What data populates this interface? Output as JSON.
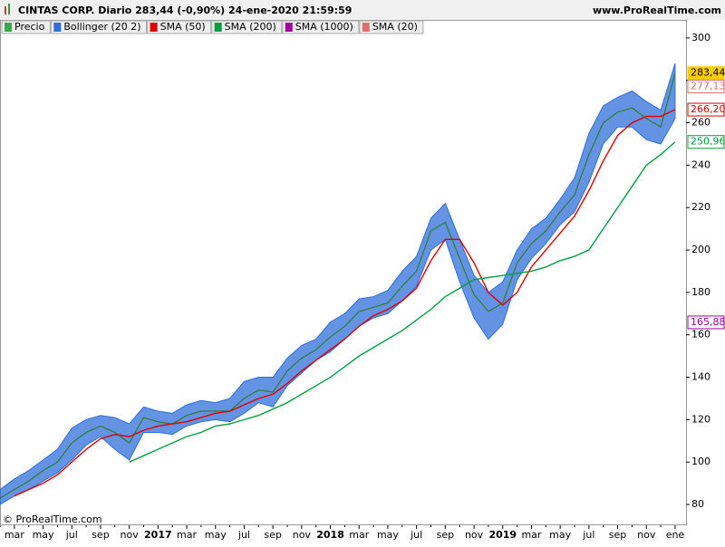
{
  "header": {
    "title": "CINTAS CORP. Diario 283,44 (-0,90%) 24-ene-2020 21:59:59",
    "site": "www.ProRealTime.com",
    "copyright": "© ProRealTime.com"
  },
  "chart_data": {
    "type": "stock",
    "categories": [
      null,
      "mar",
      null,
      "may",
      null,
      "jul",
      null,
      "sep",
      null,
      "nov",
      null,
      "2017",
      null,
      "mar",
      null,
      "may",
      null,
      "jul",
      null,
      "sep",
      null,
      "nov",
      null,
      "2018",
      null,
      "mar",
      null,
      "may",
      null,
      "jul",
      null,
      "sep",
      null,
      "nov",
      null,
      "2019",
      null,
      "mar",
      null,
      "may",
      null,
      "jul",
      null,
      "sep",
      null,
      "nov",
      null,
      "ene"
    ],
    "ylim": [
      70.2,
      308.5
    ],
    "yticks": [
      80,
      100,
      120,
      140,
      160,
      180,
      200,
      220,
      240,
      260,
      280,
      300
    ],
    "legend": [
      {
        "name": "Precio",
        "color": "#3aa84a"
      },
      {
        "name": "Bollinger (20 2)",
        "color": "#2f6fd8"
      },
      {
        "name": "SMA (50)",
        "color": "#e00000"
      },
      {
        "name": "SMA (200)",
        "color": "#00a040"
      },
      {
        "name": "SMA (1000)",
        "color": "#a000a0"
      },
      {
        "name": "SMA (20)",
        "color": "#e07070"
      }
    ],
    "series": [
      {
        "name": "Bollinger superior",
        "color": "#2f6fd8",
        "values": [
          87,
          92,
          96,
          101,
          106,
          116,
          120,
          122,
          121,
          118,
          126,
          124,
          123,
          127,
          129,
          128,
          130,
          138,
          140,
          140,
          149,
          155,
          158,
          166,
          170,
          177,
          178,
          181,
          190,
          197,
          215,
          222,
          205,
          188,
          180,
          185,
          200,
          210,
          215,
          224,
          234,
          255,
          268,
          272,
          275,
          270,
          266,
          288
        ]
      },
      {
        "name": "Bollinger inferior",
        "color": "#2f6fd8",
        "values": [
          80,
          84,
          87,
          91,
          95,
          101,
          108,
          112,
          106,
          101,
          114,
          114,
          113,
          117,
          119,
          120,
          119,
          123,
          128,
          126,
          136,
          142,
          148,
          152,
          158,
          164,
          168,
          170,
          176,
          183,
          200,
          205,
          185,
          168,
          158,
          165,
          186,
          196,
          203,
          212,
          218,
          232,
          250,
          258,
          258,
          252,
          250,
          262
        ]
      },
      {
        "name": "Precio",
        "color": "#2e7d32",
        "values": [
          83,
          87,
          91,
          96,
          100,
          109,
          114,
          117,
          114,
          109,
          121,
          119,
          118,
          122,
          124,
          124,
          124,
          130,
          134,
          133,
          143,
          149,
          153,
          159,
          164,
          171,
          173,
          175,
          183,
          190,
          209,
          213,
          196,
          179,
          171,
          175,
          194,
          203,
          209,
          218,
          226,
          245,
          260,
          265,
          267,
          262,
          258,
          283.44
        ]
      },
      {
        "name": "SMA (50)",
        "color": "#e00000",
        "values": [
          null,
          84,
          87,
          90,
          94,
          100,
          106,
          111,
          113,
          112,
          115,
          117,
          118,
          119,
          121,
          123,
          124,
          127,
          130,
          132,
          137,
          143,
          148,
          153,
          158,
          164,
          169,
          172,
          176,
          182,
          195,
          205,
          205,
          194,
          180,
          174,
          180,
          192,
          200,
          208,
          216,
          228,
          242,
          254,
          260,
          263,
          263,
          266.2
        ]
      },
      {
        "name": "SMA (200)",
        "color": "#00a040",
        "values": [
          null,
          null,
          null,
          null,
          null,
          null,
          null,
          null,
          null,
          100,
          103,
          106,
          109,
          112,
          114,
          117,
          118,
          120,
          122,
          125,
          128,
          132,
          136,
          140,
          145,
          150,
          154,
          158,
          162,
          167,
          172,
          178,
          182,
          186,
          187,
          188,
          189,
          190,
          192,
          195,
          197,
          200,
          210,
          220,
          230,
          240,
          245,
          250.96
        ]
      }
    ],
    "price_labels": [
      {
        "value": 283.44,
        "label": "283,44",
        "color": "#ffcc00"
      },
      {
        "value": 277.13,
        "label": "277,13",
        "color": "#e07070"
      },
      {
        "value": 266.2,
        "label": "266,20",
        "color": "#e00000"
      },
      {
        "value": 250.96,
        "label": "250,96",
        "color": "#00a040"
      },
      {
        "value": 165.88,
        "label": "165,88",
        "color": "#a000a0"
      }
    ]
  }
}
